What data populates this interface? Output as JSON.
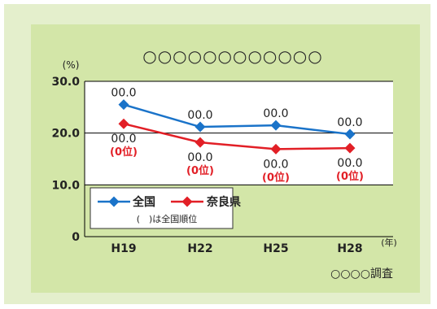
{
  "chart_data": {
    "type": "line",
    "title": "○○○○○○○○○○○○",
    "ylabel": "(%)",
    "x_unit": "(年)",
    "source": "○○○○調査",
    "categories": [
      "H19",
      "H22",
      "H25",
      "H28"
    ],
    "yticks": [
      "0",
      "10.0",
      "20.0",
      "30.0"
    ],
    "ylim": [
      0,
      30
    ],
    "grid": true,
    "legend_position": "bottom-left",
    "legend_note": "(　)は全国順位",
    "series": [
      {
        "name": "全国",
        "color": "#1a73c9",
        "values": [
          25.5,
          21.2,
          21.5,
          19.8
        ],
        "labels": [
          "00.0",
          "00.0",
          "00.0",
          "00.0"
        ]
      },
      {
        "name": "奈良県",
        "color": "#e21f26",
        "values": [
          21.8,
          18.2,
          16.9,
          17.1
        ],
        "labels": [
          "00.0",
          "00.0",
          "00.0",
          "00.0"
        ],
        "rank_labels": [
          "(0位)",
          "(0位)",
          "(0位)",
          "(0位)"
        ]
      }
    ]
  }
}
